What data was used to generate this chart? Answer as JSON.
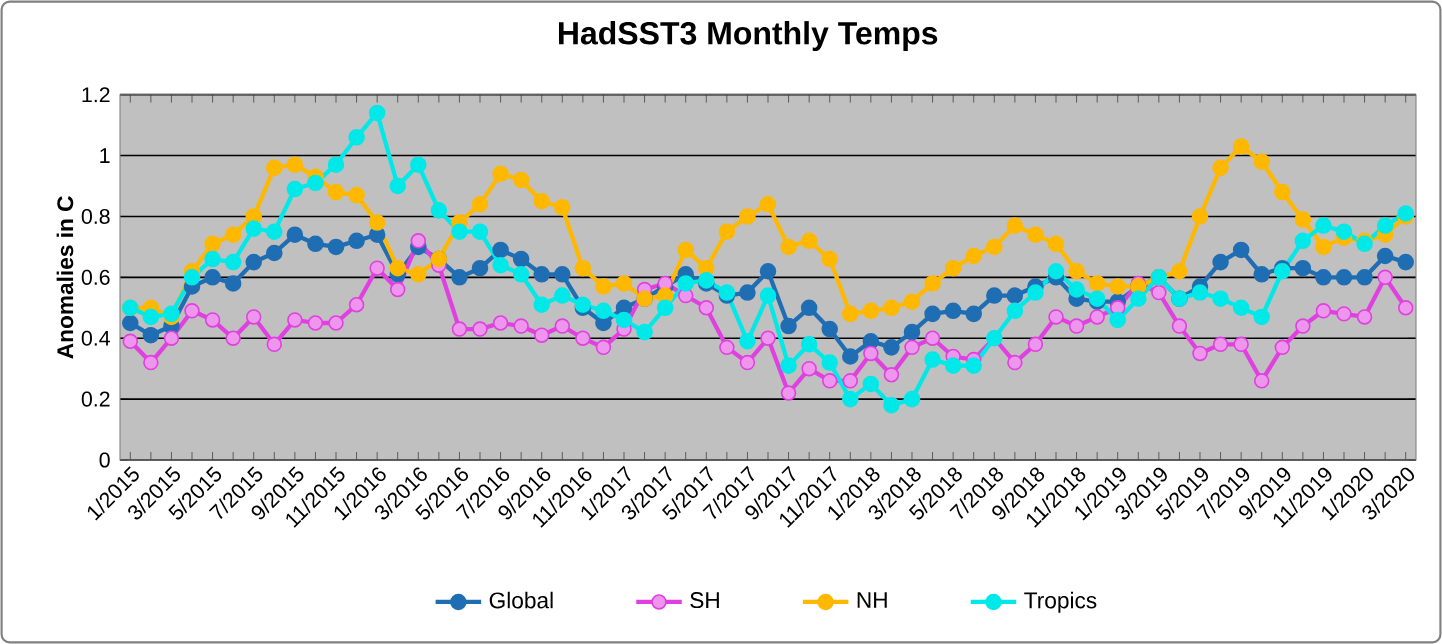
{
  "chart_data": {
    "type": "line",
    "title": "HadSST3 Monthly Temps",
    "ylabel": "Anomalies in C",
    "categories": [
      "1/2015",
      null,
      "3/2015",
      null,
      "5/2015",
      null,
      "7/2015",
      null,
      "9/2015",
      null,
      "11/2015",
      null,
      "1/2016",
      null,
      "3/2016",
      null,
      "5/2016",
      null,
      "7/2016",
      null,
      "9/2016",
      null,
      "11/2016",
      null,
      "1/2017",
      null,
      "3/2017",
      null,
      "5/2017",
      null,
      "7/2017",
      null,
      "9/2017",
      null,
      "11/2017",
      null,
      "1/2018",
      null,
      "3/2018",
      null,
      "5/2018",
      null,
      "7/2018",
      null,
      "9/2018",
      null,
      "11/2018",
      null,
      "1/2019",
      null,
      "3/2019",
      null,
      "5/2019",
      null,
      "7/2019",
      null,
      "9/2019",
      null,
      "11/2019",
      null,
      "1/2020",
      null,
      "3/2020"
    ],
    "series": [
      {
        "name": "Global",
        "color": "#1f6db3",
        "values": [
          0.45,
          0.41,
          0.44,
          0.57,
          0.6,
          0.58,
          0.65,
          0.68,
          0.74,
          0.71,
          0.7,
          0.72,
          0.74,
          0.61,
          0.7,
          0.66,
          0.6,
          0.63,
          0.69,
          0.66,
          0.61,
          0.61,
          0.5,
          0.45,
          0.5,
          0.53,
          0.57,
          0.61,
          0.58,
          0.54,
          0.55,
          0.62,
          0.44,
          0.5,
          0.43,
          0.34,
          0.39,
          0.37,
          0.42,
          0.48,
          0.49,
          0.48,
          0.54,
          0.54,
          0.57,
          0.6,
          0.53,
          0.52,
          0.52,
          0.57,
          0.6,
          0.53,
          0.57,
          0.65,
          0.69,
          0.61,
          0.63,
          0.63,
          0.6,
          0.6,
          0.6,
          0.67,
          0.65
        ]
      },
      {
        "name": "SH",
        "color": "#e040e0",
        "values": [
          0.39,
          0.32,
          0.4,
          0.49,
          0.46,
          0.4,
          0.47,
          0.38,
          0.46,
          0.45,
          0.45,
          0.51,
          0.63,
          0.56,
          0.72,
          0.64,
          0.43,
          0.43,
          0.45,
          0.44,
          0.41,
          0.44,
          0.4,
          0.37,
          0.43,
          0.56,
          0.58,
          0.54,
          0.5,
          0.37,
          0.32,
          0.4,
          0.22,
          0.3,
          0.26,
          0.26,
          0.35,
          0.28,
          0.37,
          0.4,
          0.34,
          0.33,
          0.4,
          0.32,
          0.38,
          0.47,
          0.44,
          0.47,
          0.5,
          0.58,
          0.55,
          0.44,
          0.35,
          0.38,
          0.38,
          0.26,
          0.37,
          0.44,
          0.49,
          0.48,
          0.47,
          0.6,
          0.5
        ]
      },
      {
        "name": "NH",
        "color": "#ffb800",
        "values": [
          0.5,
          0.5,
          0.47,
          0.62,
          0.71,
          0.74,
          0.8,
          0.96,
          0.97,
          0.93,
          0.88,
          0.87,
          0.78,
          0.63,
          0.61,
          0.66,
          0.78,
          0.84,
          0.94,
          0.92,
          0.85,
          0.83,
          0.63,
          0.57,
          0.58,
          0.53,
          0.54,
          0.69,
          0.63,
          0.75,
          0.8,
          0.84,
          0.7,
          0.72,
          0.66,
          0.48,
          0.49,
          0.5,
          0.52,
          0.58,
          0.63,
          0.67,
          0.7,
          0.77,
          0.74,
          0.71,
          0.62,
          0.58,
          0.57,
          0.57,
          0.6,
          0.62,
          0.8,
          0.96,
          1.03,
          0.98,
          0.88,
          0.79,
          0.7,
          0.73,
          0.72,
          0.74,
          0.8
        ]
      },
      {
        "name": "Tropics",
        "color": "#00e8e8",
        "values": [
          0.5,
          0.47,
          0.48,
          0.6,
          0.66,
          0.65,
          0.76,
          0.75,
          0.89,
          0.91,
          0.97,
          1.06,
          1.14,
          0.9,
          0.97,
          0.82,
          0.75,
          0.75,
          0.64,
          0.61,
          0.51,
          0.54,
          0.51,
          0.49,
          0.46,
          0.42,
          0.5,
          0.58,
          0.59,
          0.55,
          0.39,
          0.54,
          0.31,
          0.38,
          0.32,
          0.2,
          0.25,
          0.18,
          0.2,
          0.33,
          0.31,
          0.31,
          0.4,
          0.49,
          0.55,
          0.62,
          0.56,
          0.53,
          0.46,
          0.53,
          0.6,
          0.53,
          0.55,
          0.53,
          0.5,
          0.47,
          0.62,
          0.72,
          0.77,
          0.75,
          0.71,
          0.77,
          0.81
        ]
      }
    ],
    "ylim": [
      0,
      1.2
    ],
    "yticks": [
      0,
      0.2,
      0.4,
      0.6,
      0.8,
      1,
      1.2
    ],
    "grid": "y",
    "legend": "bottom",
    "marker": "circle"
  }
}
